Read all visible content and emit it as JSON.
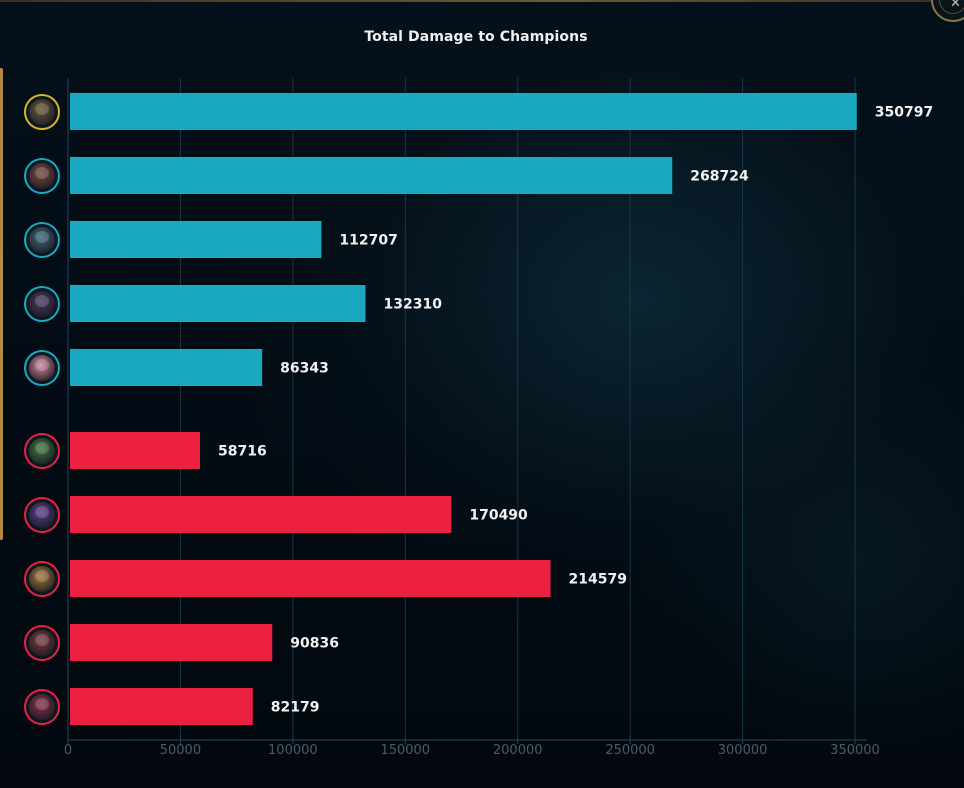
{
  "chart_data": {
    "type": "bar",
    "orientation": "horizontal",
    "title": "Total Damage to Champions",
    "xlabel": "",
    "ylabel": "",
    "xlim": [
      0,
      350000
    ],
    "x_ticks": [
      "0",
      "50000",
      "100000",
      "150000",
      "200000",
      "250000",
      "300000",
      "350000"
    ],
    "grid": "vertical",
    "series": [
      {
        "team": "blue",
        "color": "#1aa9c0",
        "values": [
          350797,
          268724,
          112707,
          132310,
          86343
        ],
        "value_labels": [
          "350797",
          "268724",
          "112707",
          "132310",
          "86343"
        ],
        "avatar_icons": [
          "champion-portrait-icon",
          "champion-portrait-icon",
          "champion-portrait-icon",
          "champion-portrait-icon",
          "champion-portrait-icon"
        ]
      },
      {
        "team": "red",
        "color": "#ec2040",
        "values": [
          58716,
          170490,
          214579,
          90836,
          82179
        ],
        "value_labels": [
          "58716",
          "170490",
          "214579",
          "90836",
          "82179"
        ],
        "avatar_icons": [
          "champion-portrait-icon",
          "champion-portrait-icon",
          "champion-portrait-icon",
          "champion-portrait-icon",
          "champion-portrait-icon"
        ]
      }
    ]
  },
  "colors": {
    "background": "#030a12",
    "grid": "#163944",
    "axis": "#1f4a58",
    "tick_text": "#4a5c64",
    "value_text": "#f2f2f2",
    "blue_team": "#1aa9c0",
    "red_team": "#ec2040",
    "highlight_border": "#d9b528",
    "accent_gold": "#b28a44"
  },
  "icons": {
    "close": "close-icon",
    "avatar": "champion-portrait-icon"
  },
  "window": {
    "close_glyph": "✕"
  }
}
